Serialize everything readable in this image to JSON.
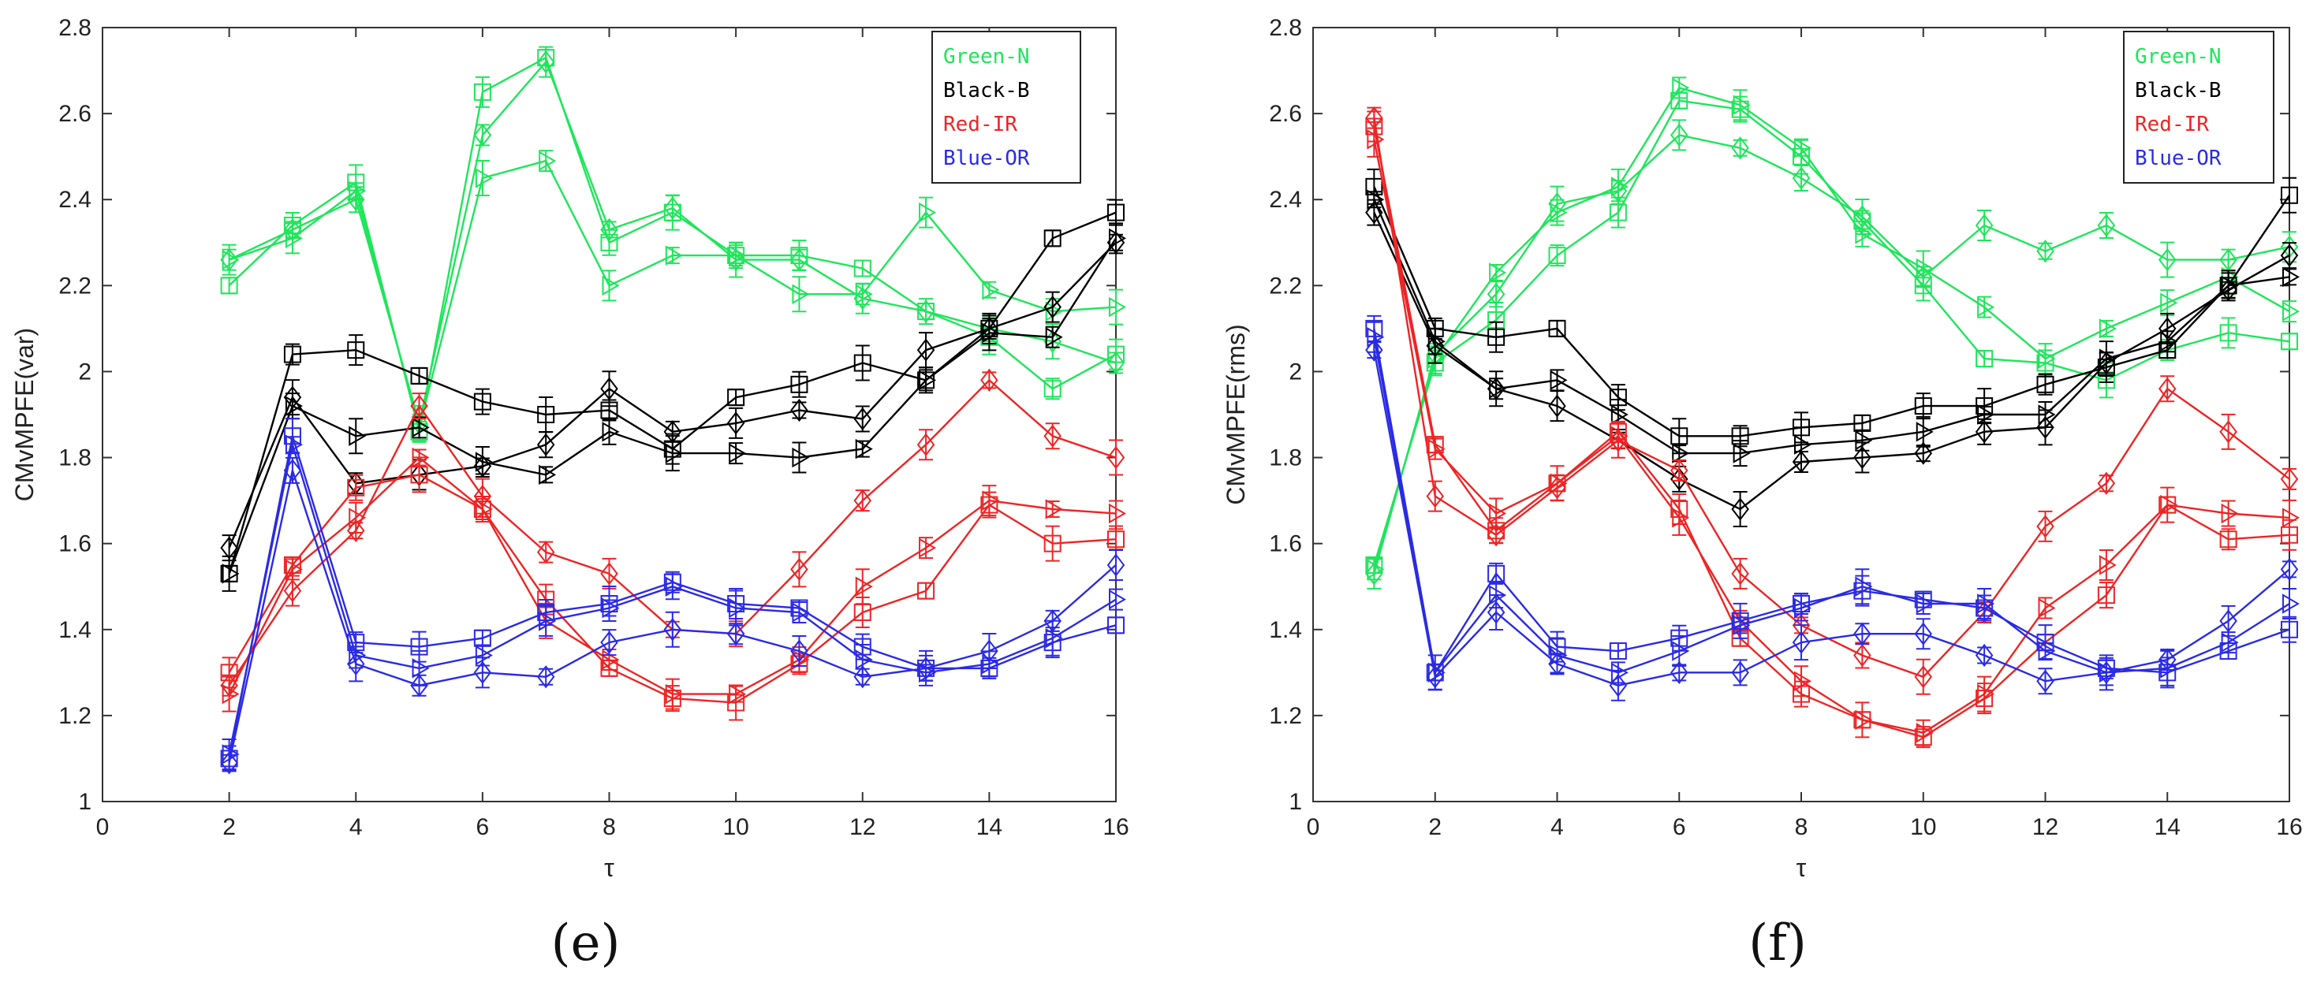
{
  "figure": {
    "panels": [
      "e",
      "f"
    ]
  },
  "chart_data": [
    {
      "panel": "e",
      "caption": "(e)",
      "type": "line",
      "xlabel": "τ",
      "ylabel": "CMvMPFE(var)",
      "xlim": [
        0,
        16
      ],
      "ylim": [
        1,
        2.8
      ],
      "xticks": [
        "0",
        "2",
        "4",
        "6",
        "8",
        "10",
        "12",
        "14",
        "16"
      ],
      "yticks": [
        "1",
        "1.2",
        "1.4",
        "1.6",
        "1.8",
        "2",
        "2.2",
        "2.4",
        "2.6",
        "2.8"
      ],
      "legend": [
        "Green-N",
        "Black-B",
        "Red-IR",
        "Blue-OR"
      ],
      "legend_position": "top-right",
      "x": [
        2,
        3,
        4,
        5,
        6,
        7,
        8,
        9,
        10,
        11,
        12,
        13,
        14,
        15,
        16
      ],
      "series": [
        {
          "name": "Green-N",
          "color": "#1ee65a",
          "marker": "square",
          "values": [
            2.2,
            2.34,
            2.44,
            1.86,
            2.65,
            2.73,
            2.3,
            2.37,
            2.27,
            2.27,
            2.24,
            2.14,
            2.08,
            1.96,
            2.04
          ]
        },
        {
          "name": "Green-N",
          "color": "#1ee65a",
          "marker": "diamond",
          "values": [
            2.26,
            2.33,
            2.4,
            1.88,
            2.55,
            2.72,
            2.33,
            2.38,
            2.26,
            2.26,
            2.17,
            2.14,
            2.1,
            2.07,
            2.02
          ]
        },
        {
          "name": "Green-N",
          "color": "#1ee65a",
          "marker": "triangle",
          "values": [
            2.26,
            2.31,
            2.42,
            1.87,
            2.45,
            2.49,
            2.2,
            2.27,
            2.27,
            2.18,
            2.18,
            2.37,
            2.19,
            2.14,
            2.15
          ]
        },
        {
          "name": "Black-B",
          "color": "#000000",
          "marker": "square",
          "values": [
            1.53,
            2.04,
            2.05,
            1.99,
            1.93,
            1.9,
            1.91,
            1.82,
            1.94,
            1.97,
            2.02,
            1.98,
            2.1,
            2.31,
            2.37
          ]
        },
        {
          "name": "Black-B",
          "color": "#000000",
          "marker": "diamond",
          "values": [
            1.59,
            1.94,
            1.74,
            1.76,
            1.78,
            1.83,
            1.96,
            1.86,
            1.88,
            1.91,
            1.89,
            2.05,
            2.1,
            2.15,
            2.3
          ]
        },
        {
          "name": "Black-B",
          "color": "#000000",
          "marker": "triangle",
          "values": [
            1.53,
            1.92,
            1.85,
            1.87,
            1.79,
            1.76,
            1.86,
            1.81,
            1.81,
            1.8,
            1.82,
            1.98,
            2.09,
            2.08,
            2.31
          ]
        },
        {
          "name": "Red-IR",
          "color": "#ee2424",
          "marker": "square",
          "values": [
            1.3,
            1.55,
            1.73,
            1.76,
            1.68,
            1.47,
            1.31,
            1.24,
            1.23,
            1.32,
            1.44,
            1.49,
            1.69,
            1.6,
            1.61
          ]
        },
        {
          "name": "Red-IR",
          "color": "#ee2424",
          "marker": "diamond",
          "values": [
            1.27,
            1.49,
            1.63,
            1.92,
            1.71,
            1.58,
            1.53,
            1.4,
            1.39,
            1.54,
            1.7,
            1.83,
            1.98,
            1.85,
            1.8
          ]
        },
        {
          "name": "Red-IR",
          "color": "#ee2424",
          "marker": "triangle",
          "values": [
            1.25,
            1.54,
            1.66,
            1.8,
            1.68,
            1.42,
            1.33,
            1.25,
            1.25,
            1.33,
            1.5,
            1.59,
            1.7,
            1.68,
            1.67
          ]
        },
        {
          "name": "Blue-OR",
          "color": "#2a2ae6",
          "marker": "square",
          "values": [
            1.1,
            1.85,
            1.37,
            1.36,
            1.38,
            1.44,
            1.46,
            1.51,
            1.46,
            1.45,
            1.36,
            1.31,
            1.31,
            1.37,
            1.41
          ]
        },
        {
          "name": "Blue-OR",
          "color": "#2a2ae6",
          "marker": "diamond",
          "values": [
            1.09,
            1.77,
            1.32,
            1.27,
            1.3,
            1.29,
            1.37,
            1.4,
            1.39,
            1.35,
            1.29,
            1.31,
            1.35,
            1.42,
            1.55
          ]
        },
        {
          "name": "Blue-OR",
          "color": "#2a2ae6",
          "marker": "triangle",
          "values": [
            1.11,
            1.83,
            1.34,
            1.31,
            1.34,
            1.42,
            1.45,
            1.5,
            1.45,
            1.44,
            1.33,
            1.3,
            1.32,
            1.38,
            1.47
          ]
        }
      ]
    },
    {
      "panel": "f",
      "caption": "(f)",
      "type": "line",
      "xlabel": "τ",
      "ylabel": "CMvMPFE(rms)",
      "xlim": [
        0,
        16
      ],
      "ylim": [
        1,
        2.8
      ],
      "xticks": [
        "0",
        "2",
        "4",
        "6",
        "8",
        "10",
        "12",
        "14",
        "16"
      ],
      "yticks": [
        "1",
        "1.2",
        "1.4",
        "1.6",
        "1.8",
        "2",
        "2.2",
        "2.4",
        "2.6",
        "2.8"
      ],
      "legend": [
        "Green-N",
        "Black-B",
        "Red-IR",
        "Blue-OR"
      ],
      "legend_position": "top-right",
      "x": [
        1,
        2,
        3,
        4,
        5,
        6,
        7,
        8,
        9,
        10,
        11,
        12,
        13,
        14,
        15,
        16
      ],
      "series": [
        {
          "name": "Green-N",
          "color": "#1ee65a",
          "marker": "square",
          "values": [
            1.55,
            2.02,
            2.12,
            2.27,
            2.37,
            2.63,
            2.61,
            2.5,
            2.35,
            2.2,
            2.03,
            2.02,
            1.98,
            2.05,
            2.09,
            2.07
          ]
        },
        {
          "name": "Green-N",
          "color": "#1ee65a",
          "marker": "diamond",
          "values": [
            1.53,
            2.04,
            2.18,
            2.39,
            2.42,
            2.55,
            2.52,
            2.45,
            2.36,
            2.22,
            2.34,
            2.28,
            2.34,
            2.26,
            2.26,
            2.29
          ]
        },
        {
          "name": "Green-N",
          "color": "#1ee65a",
          "marker": "triangle",
          "values": [
            1.54,
            2.03,
            2.23,
            2.37,
            2.43,
            2.66,
            2.62,
            2.52,
            2.32,
            2.24,
            2.15,
            2.03,
            2.1,
            2.16,
            2.22,
            2.14
          ]
        },
        {
          "name": "Black-B",
          "color": "#000000",
          "marker": "square",
          "values": [
            2.43,
            2.1,
            2.08,
            2.1,
            1.94,
            1.85,
            1.85,
            1.87,
            1.88,
            1.92,
            1.92,
            1.97,
            2.01,
            2.05,
            2.2,
            2.41
          ]
        },
        {
          "name": "Black-B",
          "color": "#000000",
          "marker": "diamond",
          "values": [
            2.37,
            2.06,
            1.96,
            1.92,
            1.84,
            1.75,
            1.68,
            1.79,
            1.8,
            1.81,
            1.86,
            1.87,
            2.02,
            2.1,
            2.19,
            2.27
          ]
        },
        {
          "name": "Black-B",
          "color": "#000000",
          "marker": "triangle",
          "values": [
            2.4,
            2.07,
            1.96,
            1.98,
            1.9,
            1.81,
            1.81,
            1.83,
            1.84,
            1.86,
            1.9,
            1.9,
            2.03,
            2.07,
            2.2,
            2.22
          ]
        },
        {
          "name": "Red-IR",
          "color": "#ee2424",
          "marker": "square",
          "values": [
            2.57,
            1.83,
            1.63,
            1.74,
            1.86,
            1.68,
            1.38,
            1.25,
            1.19,
            1.15,
            1.24,
            1.37,
            1.48,
            1.69,
            1.61,
            1.62
          ]
        },
        {
          "name": "Red-IR",
          "color": "#ee2424",
          "marker": "diamond",
          "values": [
            2.59,
            1.71,
            1.62,
            1.73,
            1.84,
            1.77,
            1.53,
            1.41,
            1.34,
            1.29,
            1.44,
            1.64,
            1.74,
            1.96,
            1.86,
            1.75
          ]
        },
        {
          "name": "Red-IR",
          "color": "#ee2424",
          "marker": "triangle",
          "values": [
            2.54,
            1.82,
            1.67,
            1.74,
            1.85,
            1.66,
            1.42,
            1.28,
            1.19,
            1.16,
            1.25,
            1.45,
            1.55,
            1.69,
            1.67,
            1.66
          ]
        },
        {
          "name": "Blue-OR",
          "color": "#2a2ae6",
          "marker": "square",
          "values": [
            2.1,
            1.3,
            1.53,
            1.36,
            1.35,
            1.38,
            1.42,
            1.46,
            1.49,
            1.47,
            1.45,
            1.37,
            1.31,
            1.3,
            1.35,
            1.4
          ]
        },
        {
          "name": "Blue-OR",
          "color": "#2a2ae6",
          "marker": "diamond",
          "values": [
            2.05,
            1.29,
            1.44,
            1.32,
            1.27,
            1.3,
            1.3,
            1.37,
            1.39,
            1.39,
            1.34,
            1.28,
            1.3,
            1.33,
            1.42,
            1.54
          ]
        },
        {
          "name": "Blue-OR",
          "color": "#2a2ae6",
          "marker": "triangle",
          "values": [
            2.08,
            1.3,
            1.48,
            1.34,
            1.3,
            1.35,
            1.41,
            1.45,
            1.5,
            1.46,
            1.46,
            1.35,
            1.3,
            1.31,
            1.37,
            1.46
          ]
        }
      ]
    }
  ]
}
